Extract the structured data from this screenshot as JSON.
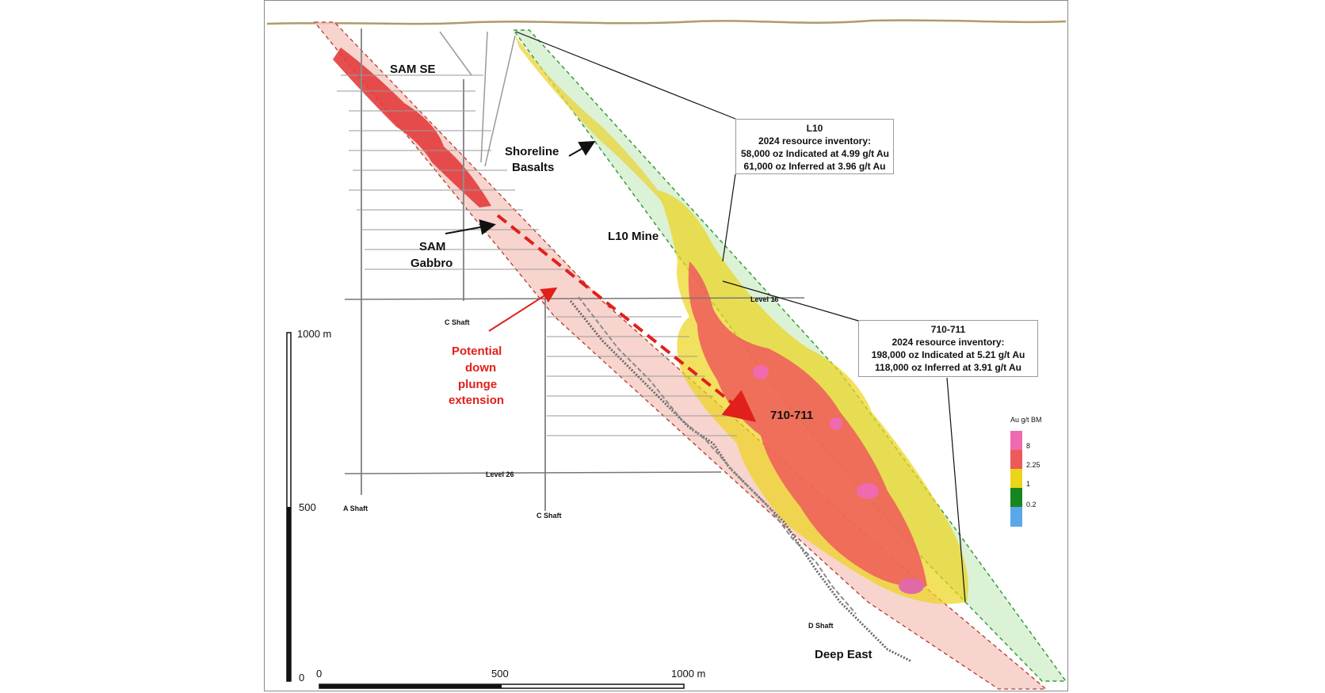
{
  "labels": {
    "sam_se": "SAM SE",
    "shoreline": [
      "Shoreline",
      "Basalts"
    ],
    "sam_gabbro": [
      "SAM",
      "Gabbro"
    ],
    "l10_mine": "L10 Mine",
    "potential": [
      "Potential",
      "down",
      "plunge",
      "extension"
    ],
    "zone_710": "710-711",
    "deep_east": "Deep East",
    "level16": "Level 16",
    "level26": "Level 26",
    "c_shaft_upper": "C Shaft",
    "c_shaft_lower": "C Shaft",
    "a_shaft": "A Shaft",
    "d_shaft": "D Shaft"
  },
  "callout_l10": {
    "title": "L10",
    "subtitle": "2024 resource inventory:",
    "line1": "58,000 oz Indicated at 4.99 g/t Au",
    "line2": "61,000 oz Inferred at 3.96 g/t Au"
  },
  "callout_710": {
    "title": "710-711",
    "subtitle": "2024 resource inventory:",
    "line1": "198,000 oz Indicated at 5.21 g/t Au",
    "line2": "118,000 oz Inferred at 3.91 g/t Au"
  },
  "vertical_scale": {
    "top": "1000 m",
    "mid": "500",
    "bottom": "0"
  },
  "horizontal_scale": {
    "left": "0",
    "mid": "500",
    "right": "1000 m"
  },
  "legend": {
    "title": "Au g/t BM",
    "items": [
      {
        "label": "8",
        "color": "#f06ab0"
      },
      {
        "label": "2.25",
        "color": "#ee5a5a"
      },
      {
        "label": "1",
        "color": "#ecd41a"
      },
      {
        "label": "0.2",
        "color": "#17861e"
      },
      {
        "label": "",
        "color": "#5aa8e8"
      }
    ]
  },
  "colors": {
    "sam_band": "#f6c9c2",
    "sam_core": "#e23c3c",
    "shoreline_band": "#cfeec9",
    "high": "#f06ab0",
    "mid": "#ee5a5a",
    "low": "#ecd41a",
    "topo": "#b09a6a",
    "extension": "#e1201b"
  }
}
